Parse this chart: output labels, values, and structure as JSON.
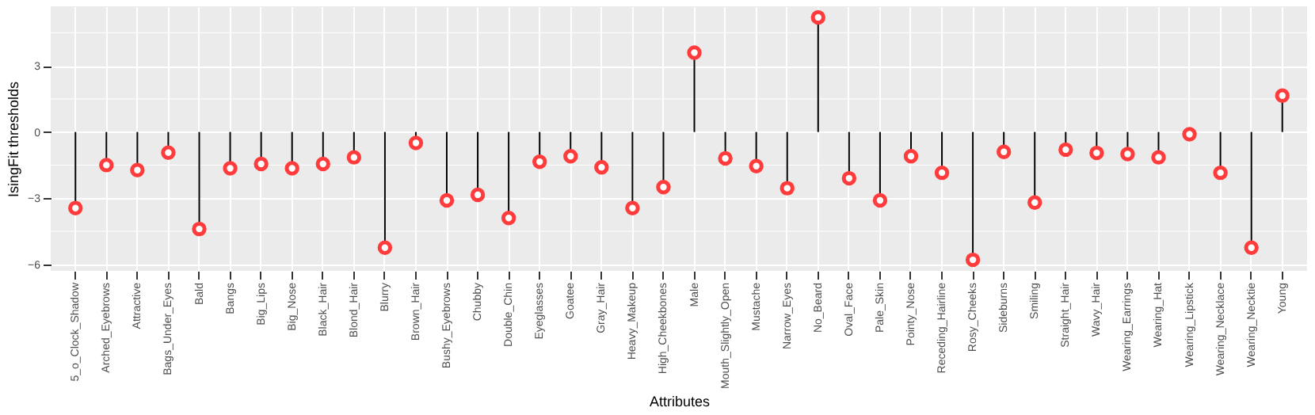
{
  "chart_data": {
    "type": "lollipop",
    "xlabel": "Attributes",
    "ylabel": "IsingFit thresholds",
    "categories": [
      "5_o_Clock_Shadow",
      "Arched_Eyebrows",
      "Attractive",
      "Bags_Under_Eyes",
      "Bald",
      "Bangs",
      "Big_Lips",
      "Big_Nose",
      "Black_Hair",
      "Blond_Hair",
      "Blurry",
      "Brown_Hair",
      "Bushy_Eyebrows",
      "Chubby",
      "Double_Chin",
      "Eyeglasses",
      "Goatee",
      "Gray_Hair",
      "Heavy_Makeup",
      "High_Cheekbones",
      "Male",
      "Mouth_Slightly_Open",
      "Mustache",
      "Narrow_Eyes",
      "No_Beard",
      "Oval_Face",
      "Pale_Skin",
      "Pointy_Nose",
      "Receding_Hairline",
      "Rosy_Cheeks",
      "Sideburns",
      "Smiling",
      "Straight_Hair",
      "Wavy_Hair",
      "Wearing_Earrings",
      "Wearing_Hat",
      "Wearing_Lipstick",
      "Wearing_Necklace",
      "Wearing_Necktie",
      "Young"
    ],
    "series": [
      {
        "color": "#ff3b3b",
        "values": [
          -3.45,
          -1.5,
          -1.73,
          -0.94,
          -4.4,
          -1.65,
          -1.45,
          -1.65,
          -1.45,
          -1.15,
          -5.25,
          -0.5,
          -3.1,
          -2.85,
          -3.9,
          -1.35,
          -1.1,
          -1.6,
          -3.45,
          -2.5,
          3.6,
          -1.2,
          -1.55,
          -2.55,
          5.2,
          -2.1,
          -3.1,
          -1.1,
          -1.85,
          -5.8,
          -0.9,
          -3.2,
          -0.8,
          -0.95,
          -1.0,
          -1.15,
          -0.1,
          -1.85,
          -5.25,
          1.65
        ]
      }
    ],
    "ylim": [
      -6.3,
      5.7
    ],
    "yticks": [
      -6,
      -3,
      0,
      3
    ],
    "grid": true,
    "marker": "circle"
  }
}
